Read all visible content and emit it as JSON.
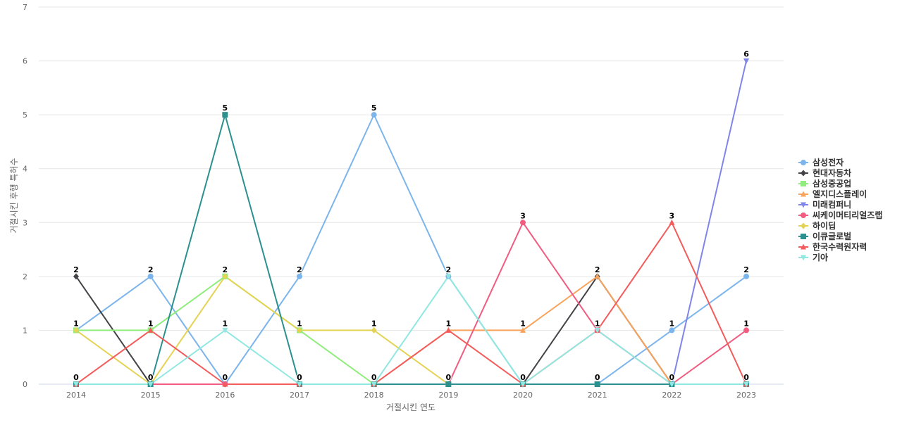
{
  "chart_data": {
    "type": "line",
    "xlabel": "거절시킨 연도",
    "ylabel": "거절시킨 후행 특허수",
    "ylim": [
      0,
      7
    ],
    "yticks": [
      0,
      1,
      2,
      3,
      4,
      5,
      6,
      7
    ],
    "grid": true,
    "legend_position": "right",
    "categories": [
      "2014",
      "2015",
      "2016",
      "2017",
      "2018",
      "2019",
      "2020",
      "2021",
      "2022",
      "2023"
    ],
    "series": [
      {
        "name": "삼성전자",
        "color": "#7cb5ec",
        "marker": "circle",
        "values": [
          1,
          2,
          0,
          2,
          5,
          2,
          0,
          0,
          1,
          2
        ]
      },
      {
        "name": "현대자동차",
        "color": "#434348",
        "marker": "diamond",
        "values": [
          2,
          0,
          0,
          0,
          0,
          0,
          0,
          2,
          0,
          0
        ]
      },
      {
        "name": "삼성중공업",
        "color": "#90ed7d",
        "marker": "square",
        "values": [
          1,
          1,
          2,
          1,
          0,
          0,
          0,
          0,
          0,
          0
        ]
      },
      {
        "name": "엘지디스플레이",
        "color": "#f7a35c",
        "marker": "triangle",
        "values": [
          0,
          0,
          0,
          0,
          0,
          1,
          1,
          2,
          0,
          0
        ]
      },
      {
        "name": "미래컴퍼니",
        "color": "#8085e9",
        "marker": "triangle-down",
        "values": [
          0,
          0,
          0,
          0,
          0,
          0,
          0,
          0,
          0,
          6
        ]
      },
      {
        "name": "씨케이머티리얼즈랩",
        "color": "#f15c80",
        "marker": "circle",
        "values": [
          0,
          0,
          0,
          0,
          0,
          0,
          3,
          1,
          0,
          1
        ]
      },
      {
        "name": "하이딥",
        "color": "#e4d354",
        "marker": "diamond",
        "values": [
          1,
          0,
          2,
          1,
          1,
          0,
          0,
          0,
          0,
          0
        ]
      },
      {
        "name": "이큐글로벌",
        "color": "#2b908f",
        "marker": "square",
        "values": [
          0,
          0,
          5,
          0,
          0,
          0,
          0,
          0,
          0,
          0
        ]
      },
      {
        "name": "한국수력원자력",
        "color": "#f45b5b",
        "marker": "triangle",
        "values": [
          0,
          1,
          0,
          0,
          0,
          1,
          0,
          1,
          3,
          0
        ]
      },
      {
        "name": "기아",
        "color": "#91e8e1",
        "marker": "triangle-down",
        "values": [
          0,
          0,
          1,
          0,
          0,
          2,
          0,
          1,
          0,
          0
        ]
      }
    ],
    "data_labels": {
      "2014": [
        "2",
        "1",
        "0"
      ],
      "2015": [
        "2",
        "1",
        "0"
      ],
      "2016": [
        "5",
        "2",
        "1",
        "0"
      ],
      "2017": [
        "2",
        "1",
        "0"
      ],
      "2018": [
        "5",
        "1",
        "0"
      ],
      "2019": [
        "2",
        "1",
        "0"
      ],
      "2020": [
        "3",
        "1",
        "0"
      ],
      "2021": [
        "2",
        "1",
        "0"
      ],
      "2022": [
        "3",
        "1",
        "0"
      ],
      "2023": [
        "6",
        "2",
        "1",
        "0"
      ]
    }
  }
}
